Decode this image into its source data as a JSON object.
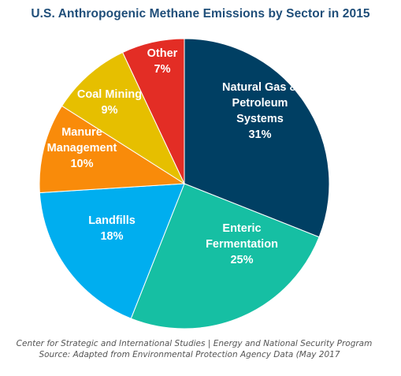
{
  "chart_data": {
    "type": "pie",
    "title": "U.S. Anthropogenic Methane Emissions by Sector in 2015",
    "slices": [
      {
        "label": [
          "Natural Gas &",
          "Petroleum",
          "Systems"
        ],
        "percent_label": "31%",
        "value": 31,
        "color": "#003f63"
      },
      {
        "label": [
          "Enteric",
          "Fermentation"
        ],
        "percent_label": "25%",
        "value": 25,
        "color": "#16bfa3"
      },
      {
        "label": [
          "Landfills"
        ],
        "percent_label": "18%",
        "value": 18,
        "color": "#00aeef"
      },
      {
        "label": [
          "Manure",
          "Management"
        ],
        "percent_label": "10%",
        "value": 10,
        "color": "#f98b0a"
      },
      {
        "label": [
          "Coal Mining"
        ],
        "percent_label": "9%",
        "value": 9,
        "color": "#e6bf00"
      },
      {
        "label": [
          "Other"
        ],
        "percent_label": "7%",
        "value": 7,
        "color": "#e32d25"
      }
    ]
  },
  "footer": {
    "line1": "Center for Strategic and International Studies | Energy and National Security Program",
    "line2": "Source: Adapted from Environmental Protection Agency Data (May 2017"
  }
}
